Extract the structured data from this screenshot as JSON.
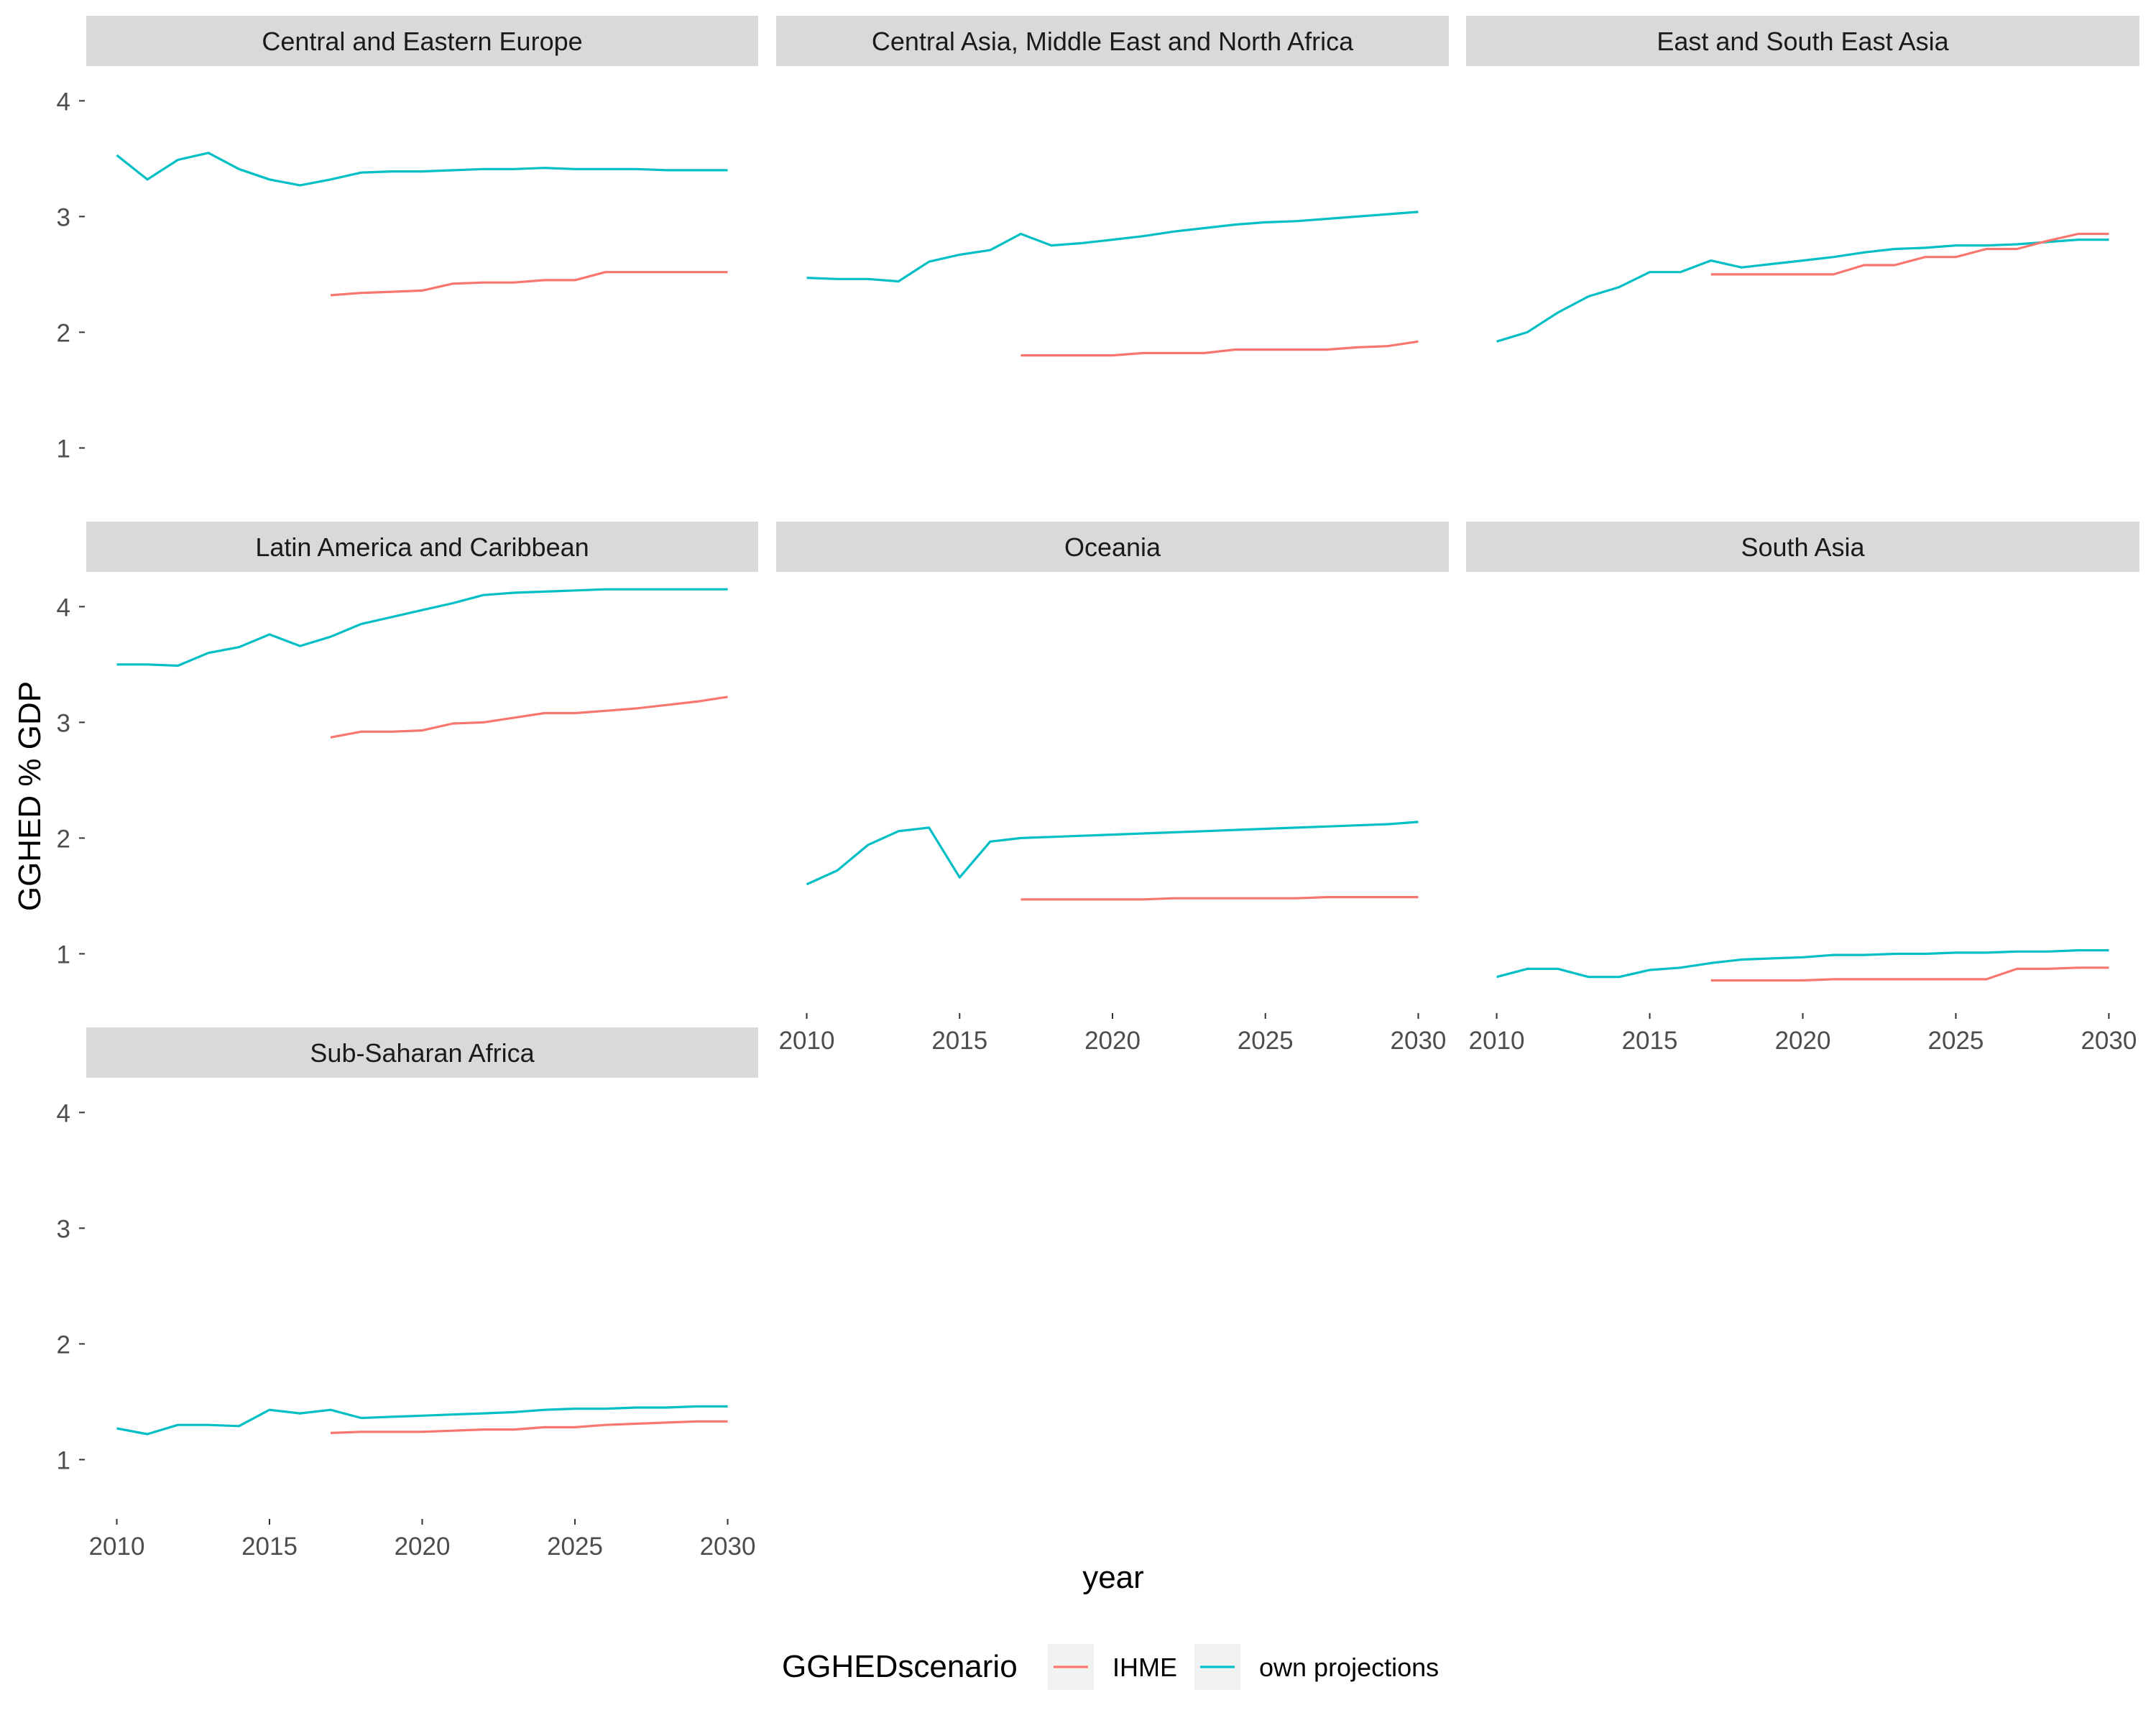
{
  "colors": {
    "IHME": "#F8766D",
    "own projections": "#00BFC4",
    "strip_bg": "#D9D9D9",
    "tick_text": "#4D4D4D",
    "axis_title": "#000000"
  },
  "chart_data": {
    "type": "line",
    "xlabel": "year",
    "ylabel": "GGHED % GDP",
    "xlim": [
      2009,
      2031
    ],
    "ylim": [
      0.5,
      4.3
    ],
    "x_ticks": [
      2010,
      2015,
      2020,
      2025,
      2030
    ],
    "y_ticks": [
      1,
      2,
      3,
      4
    ],
    "legend": {
      "title": "GGHEDscenario",
      "position": "bottom",
      "entries": [
        "IHME",
        "own projections"
      ]
    },
    "grid": false,
    "facets": [
      {
        "title": "Central and Eastern Europe",
        "series": [
          {
            "name": "own projections",
            "x": [
              2010,
              2011,
              2012,
              2013,
              2014,
              2015,
              2016,
              2017,
              2018,
              2019,
              2020,
              2021,
              2022,
              2023,
              2024,
              2025,
              2026,
              2027,
              2028,
              2029,
              2030
            ],
            "y": [
              3.53,
              3.32,
              3.49,
              3.55,
              3.41,
              3.32,
              3.27,
              3.32,
              3.38,
              3.39,
              3.39,
              3.4,
              3.41,
              3.41,
              3.42,
              3.41,
              3.41,
              3.41,
              3.4,
              3.4,
              3.4
            ]
          },
          {
            "name": "IHME",
            "x": [
              2017,
              2018,
              2019,
              2020,
              2021,
              2022,
              2023,
              2024,
              2025,
              2026,
              2027,
              2028,
              2029,
              2030
            ],
            "y": [
              2.32,
              2.34,
              2.35,
              2.36,
              2.42,
              2.43,
              2.43,
              2.45,
              2.45,
              2.52,
              2.52,
              2.52,
              2.52,
              2.52
            ]
          }
        ]
      },
      {
        "title": "Central Asia, Middle East and North Africa",
        "series": [
          {
            "name": "own projections",
            "x": [
              2010,
              2011,
              2012,
              2013,
              2014,
              2015,
              2016,
              2017,
              2018,
              2019,
              2020,
              2021,
              2022,
              2023,
              2024,
              2025,
              2026,
              2027,
              2028,
              2029,
              2030
            ],
            "y": [
              2.47,
              2.46,
              2.46,
              2.44,
              2.61,
              2.67,
              2.71,
              2.85,
              2.75,
              2.77,
              2.8,
              2.83,
              2.87,
              2.9,
              2.93,
              2.95,
              2.96,
              2.98,
              3.0,
              3.02,
              3.04
            ]
          },
          {
            "name": "IHME",
            "x": [
              2017,
              2018,
              2019,
              2020,
              2021,
              2022,
              2023,
              2024,
              2025,
              2026,
              2027,
              2028,
              2029,
              2030
            ],
            "y": [
              1.8,
              1.8,
              1.8,
              1.8,
              1.82,
              1.82,
              1.82,
              1.85,
              1.85,
              1.85,
              1.85,
              1.87,
              1.88,
              1.92
            ]
          }
        ]
      },
      {
        "title": "East and South East Asia",
        "series": [
          {
            "name": "own projections",
            "x": [
              2010,
              2011,
              2012,
              2013,
              2014,
              2015,
              2016,
              2017,
              2018,
              2019,
              2020,
              2021,
              2022,
              2023,
              2024,
              2025,
              2026,
              2027,
              2028,
              2029,
              2030
            ],
            "y": [
              1.92,
              2.0,
              2.17,
              2.31,
              2.39,
              2.52,
              2.52,
              2.62,
              2.56,
              2.59,
              2.62,
              2.65,
              2.69,
              2.72,
              2.73,
              2.75,
              2.75,
              2.76,
              2.78,
              2.8,
              2.8
            ]
          },
          {
            "name": "IHME",
            "x": [
              2017,
              2018,
              2019,
              2020,
              2021,
              2022,
              2023,
              2024,
              2025,
              2026,
              2027,
              2028,
              2029,
              2030
            ],
            "y": [
              2.5,
              2.5,
              2.5,
              2.5,
              2.5,
              2.58,
              2.58,
              2.65,
              2.65,
              2.72,
              2.72,
              2.79,
              2.85,
              2.85
            ]
          }
        ]
      },
      {
        "title": "Latin America and Caribbean",
        "series": [
          {
            "name": "own projections",
            "x": [
              2010,
              2011,
              2012,
              2013,
              2014,
              2015,
              2016,
              2017,
              2018,
              2019,
              2020,
              2021,
              2022,
              2023,
              2024,
              2025,
              2026,
              2027,
              2028,
              2029,
              2030
            ],
            "y": [
              3.5,
              3.5,
              3.49,
              3.6,
              3.65,
              3.76,
              3.66,
              3.74,
              3.85,
              3.91,
              3.97,
              4.03,
              4.1,
              4.12,
              4.13,
              4.14,
              4.15,
              4.15,
              4.15,
              4.15,
              4.15
            ]
          },
          {
            "name": "IHME",
            "x": [
              2017,
              2018,
              2019,
              2020,
              2021,
              2022,
              2023,
              2024,
              2025,
              2026,
              2027,
              2028,
              2029,
              2030
            ],
            "y": [
              2.87,
              2.92,
              2.92,
              2.93,
              2.99,
              3.0,
              3.04,
              3.08,
              3.08,
              3.1,
              3.12,
              3.15,
              3.18,
              3.22
            ]
          }
        ]
      },
      {
        "title": "Oceania",
        "series": [
          {
            "name": "own projections",
            "x": [
              2010,
              2011,
              2012,
              2013,
              2014,
              2015,
              2016,
              2017,
              2018,
              2019,
              2020,
              2021,
              2022,
              2023,
              2024,
              2025,
              2026,
              2027,
              2028,
              2029,
              2030
            ],
            "y": [
              1.6,
              1.72,
              1.94,
              2.06,
              2.09,
              1.66,
              1.97,
              2.0,
              2.01,
              2.02,
              2.03,
              2.04,
              2.05,
              2.06,
              2.07,
              2.08,
              2.09,
              2.1,
              2.11,
              2.12,
              2.14
            ]
          },
          {
            "name": "IHME",
            "x": [
              2017,
              2018,
              2019,
              2020,
              2021,
              2022,
              2023,
              2024,
              2025,
              2026,
              2027,
              2028,
              2029,
              2030
            ],
            "y": [
              1.47,
              1.47,
              1.47,
              1.47,
              1.47,
              1.48,
              1.48,
              1.48,
              1.48,
              1.48,
              1.49,
              1.49,
              1.49,
              1.49
            ]
          }
        ]
      },
      {
        "title": "South Asia",
        "series": [
          {
            "name": "own projections",
            "x": [
              2010,
              2011,
              2012,
              2013,
              2014,
              2015,
              2016,
              2017,
              2018,
              2019,
              2020,
              2021,
              2022,
              2023,
              2024,
              2025,
              2026,
              2027,
              2028,
              2029,
              2030
            ],
            "y": [
              0.8,
              0.87,
              0.87,
              0.8,
              0.8,
              0.86,
              0.88,
              0.92,
              0.95,
              0.96,
              0.97,
              0.99,
              0.99,
              1.0,
              1.0,
              1.01,
              1.01,
              1.02,
              1.02,
              1.03,
              1.03
            ]
          },
          {
            "name": "IHME",
            "x": [
              2017,
              2018,
              2019,
              2020,
              2021,
              2022,
              2023,
              2024,
              2025,
              2026,
              2027,
              2028,
              2029,
              2030
            ],
            "y": [
              0.77,
              0.77,
              0.77,
              0.77,
              0.78,
              0.78,
              0.78,
              0.78,
              0.78,
              0.78,
              0.87,
              0.87,
              0.88,
              0.88
            ]
          }
        ]
      },
      {
        "title": "Sub-Saharan Africa",
        "series": [
          {
            "name": "own projections",
            "x": [
              2010,
              2011,
              2012,
              2013,
              2014,
              2015,
              2016,
              2017,
              2018,
              2019,
              2020,
              2021,
              2022,
              2023,
              2024,
              2025,
              2026,
              2027,
              2028,
              2029,
              2030
            ],
            "y": [
              1.27,
              1.22,
              1.3,
              1.3,
              1.29,
              1.43,
              1.4,
              1.43,
              1.36,
              1.37,
              1.38,
              1.39,
              1.4,
              1.41,
              1.43,
              1.44,
              1.44,
              1.45,
              1.45,
              1.46,
              1.46
            ]
          },
          {
            "name": "IHME",
            "x": [
              2017,
              2018,
              2019,
              2020,
              2021,
              2022,
              2023,
              2024,
              2025,
              2026,
              2027,
              2028,
              2029,
              2030
            ],
            "y": [
              1.23,
              1.24,
              1.24,
              1.24,
              1.25,
              1.26,
              1.26,
              1.28,
              1.28,
              1.3,
              1.31,
              1.32,
              1.33,
              1.33
            ]
          }
        ]
      }
    ]
  }
}
